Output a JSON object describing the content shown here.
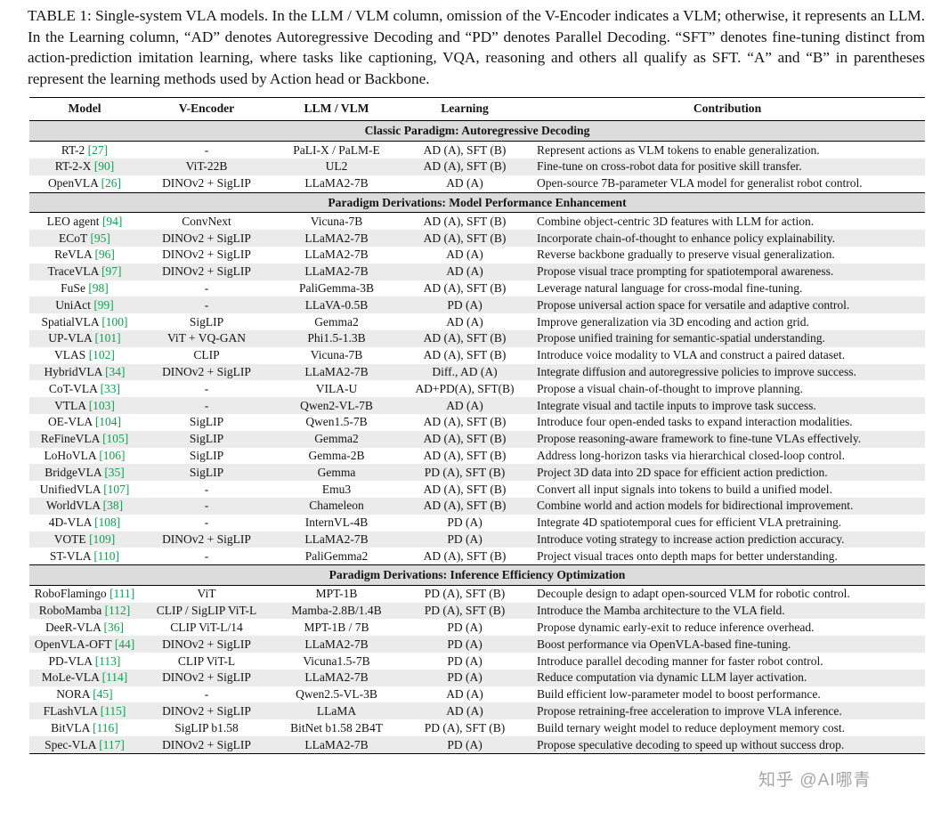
{
  "caption": "TABLE 1: Single-system VLA models. In the LLM / VLM column, omission of the V-Encoder indicates a VLM; otherwise, it represents an LLM. In the Learning column, “AD” denotes Autoregressive Decoding and “PD” denotes Parallel Decoding. “SFT” denotes fine-tuning distinct from action-prediction imitation learning, where tasks like captioning, VQA, reasoning and others all qualify as SFT. “A” and “B” in parentheses represent the learning methods used by Action head or Backbone.",
  "colors": {
    "citation": "#0ba24e",
    "section_bg": "#dcdcdc",
    "stripe": "#ebebeb"
  },
  "watermark": "知乎 @AI哪青",
  "table": {
    "columns": [
      "Model",
      "V-Encoder",
      "LLM / VLM",
      "Learning",
      "Contribution"
    ],
    "sections": [
      {
        "title": "Classic Paradigm: Autoregressive Decoding",
        "rows": [
          {
            "model": "RT-2",
            "cite": "27",
            "vencoder": "-",
            "llm": "PaLI-X / PaLM-E",
            "learning": "AD (A), SFT (B)",
            "contribution": "Represent actions as VLM tokens to enable generalization."
          },
          {
            "model": "RT-2-X",
            "cite": "90",
            "vencoder": "ViT-22B",
            "llm": "UL2",
            "learning": "AD (A), SFT (B)",
            "contribution": "Fine-tune on cross-robot data for positive skill transfer."
          },
          {
            "model": "OpenVLA",
            "cite": "26",
            "vencoder": "DINOv2 + SigLIP",
            "llm": "LLaMA2-7B",
            "learning": "AD (A)",
            "contribution": "Open-source 7B-parameter VLA model for generalist robot control."
          }
        ]
      },
      {
        "title": "Paradigm Derivations: Model Performance Enhancement",
        "rows": [
          {
            "model": "LEO agent",
            "cite": "94",
            "vencoder": "ConvNext",
            "llm": "Vicuna-7B",
            "learning": "AD (A), SFT (B)",
            "contribution": "Combine object-centric 3D features with LLM for action."
          },
          {
            "model": "ECoT",
            "cite": "95",
            "vencoder": "DINOv2 + SigLIP",
            "llm": "LLaMA2-7B",
            "learning": "AD (A), SFT (B)",
            "contribution": "Incorporate chain-of-thought to enhance policy explainability."
          },
          {
            "model": "ReVLA",
            "cite": "96",
            "vencoder": "DINOv2 + SigLIP",
            "llm": "LLaMA2-7B",
            "learning": "AD (A)",
            "contribution": "Reverse backbone gradually to preserve visual generalization."
          },
          {
            "model": "TraceVLA",
            "cite": "97",
            "vencoder": "DINOv2 + SigLIP",
            "llm": "LLaMA2-7B",
            "learning": "AD (A)",
            "contribution": "Propose visual trace prompting for spatiotemporal awareness."
          },
          {
            "model": "FuSe",
            "cite": "98",
            "vencoder": "-",
            "llm": "PaliGemma-3B",
            "learning": "AD (A), SFT (B)",
            "contribution": "Leverage natural language for cross-modal fine-tuning."
          },
          {
            "model": "UniAct",
            "cite": "99",
            "vencoder": "-",
            "llm": "LLaVA-0.5B",
            "learning": "PD (A)",
            "contribution": "Propose universal action space for versatile and adaptive control."
          },
          {
            "model": "SpatialVLA",
            "cite": "100",
            "vencoder": "SigLIP",
            "llm": "Gemma2",
            "learning": "AD (A)",
            "contribution": "Improve generalization via 3D encoding and action grid."
          },
          {
            "model": "UP-VLA",
            "cite": "101",
            "vencoder": "ViT + VQ-GAN",
            "llm": "Phi1.5-1.3B",
            "learning": "AD (A), SFT (B)",
            "contribution": "Propose unified training for semantic-spatial understanding."
          },
          {
            "model": "VLAS",
            "cite": "102",
            "vencoder": "CLIP",
            "llm": "Vicuna-7B",
            "learning": "AD (A), SFT (B)",
            "contribution": "Introduce voice modality to VLA and construct a paired dataset."
          },
          {
            "model": "HybridVLA",
            "cite": "34",
            "vencoder": "DINOv2 + SigLIP",
            "llm": "LLaMA2-7B",
            "learning": "Diff., AD (A)",
            "contribution": "Integrate diffusion and autoregressive policies to improve success."
          },
          {
            "model": "CoT-VLA",
            "cite": "33",
            "vencoder": "-",
            "llm": "VILA-U",
            "learning": "AD+PD(A), SFT(B)",
            "contribution": "Propose a visual chain-of-thought to improve planning."
          },
          {
            "model": "VTLA",
            "cite": "103",
            "vencoder": "-",
            "llm": "Qwen2-VL-7B",
            "learning": "AD (A)",
            "contribution": "Integrate visual and tactile inputs to improve task success."
          },
          {
            "model": "OE-VLA",
            "cite": "104",
            "vencoder": "SigLIP",
            "llm": "Qwen1.5-7B",
            "learning": "AD (A), SFT (B)",
            "contribution": "Introduce four open-ended tasks to expand interaction modalities."
          },
          {
            "model": "ReFineVLA",
            "cite": "105",
            "vencoder": "SigLIP",
            "llm": "Gemma2",
            "learning": "AD (A), SFT (B)",
            "contribution": "Propose reasoning-aware framework to fine-tune VLAs effectively."
          },
          {
            "model": "LoHoVLA",
            "cite": "106",
            "vencoder": "SigLIP",
            "llm": "Gemma-2B",
            "learning": "AD (A), SFT (B)",
            "contribution": "Address long-horizon tasks via hierarchical closed-loop control."
          },
          {
            "model": "BridgeVLA",
            "cite": "35",
            "vencoder": "SigLIP",
            "llm": "Gemma",
            "learning": "PD (A), SFT (B)",
            "contribution": "Project 3D data into 2D space for efficient action prediction."
          },
          {
            "model": "UnifiedVLA",
            "cite": "107",
            "vencoder": "-",
            "llm": "Emu3",
            "learning": "AD (A), SFT (B)",
            "contribution": "Convert all input signals into tokens to build a unified model."
          },
          {
            "model": "WorldVLA",
            "cite": "38",
            "vencoder": "-",
            "llm": "Chameleon",
            "learning": "AD (A), SFT (B)",
            "contribution": "Combine world and action models for bidirectional improvement."
          },
          {
            "model": "4D-VLA",
            "cite": "108",
            "vencoder": "-",
            "llm": "InternVL-4B",
            "learning": "PD (A)",
            "contribution": "Integrate 4D spatiotemporal cues for efficient VLA pretraining."
          },
          {
            "model": "VOTE",
            "cite": "109",
            "vencoder": "DINOv2 + SigLIP",
            "llm": "LLaMA2-7B",
            "learning": "PD (A)",
            "contribution": "Introduce voting strategy to increase action prediction accuracy."
          },
          {
            "model": "ST-VLA",
            "cite": "110",
            "vencoder": "-",
            "llm": "PaliGemma2",
            "learning": "AD (A), SFT (B)",
            "contribution": "Project visual traces onto depth maps for better understanding."
          }
        ]
      },
      {
        "title": "Paradigm Derivations: Inference Efficiency Optimization",
        "rows": [
          {
            "model": "RoboFlamingo",
            "cite": "111",
            "vencoder": "ViT",
            "llm": "MPT-1B",
            "learning": "PD (A), SFT (B)",
            "contribution": "Decouple design to adapt open-sourced VLM for robotic control."
          },
          {
            "model": "RoboMamba",
            "cite": "112",
            "vencoder": "CLIP / SigLIP ViT-L",
            "llm": "Mamba-2.8B/1.4B",
            "learning": "PD (A), SFT (B)",
            "contribution": "Introduce the Mamba architecture to the VLA field."
          },
          {
            "model": "DeeR-VLA",
            "cite": "36",
            "vencoder": "CLIP ViT-L/14",
            "llm": "MPT-1B / 7B",
            "learning": "PD (A)",
            "contribution": "Propose dynamic early-exit to reduce inference overhead."
          },
          {
            "model": "OpenVLA-OFT",
            "cite": "44",
            "vencoder": "DINOv2 + SigLIP",
            "llm": "LLaMA2-7B",
            "learning": "PD (A)",
            "contribution": "Boost performance via OpenVLA-based fine-tuning."
          },
          {
            "model": "PD-VLA",
            "cite": "113",
            "vencoder": "CLIP ViT-L",
            "llm": "Vicuna1.5-7B",
            "learning": "PD (A)",
            "contribution": "Introduce parallel decoding manner for faster robot control."
          },
          {
            "model": "MoLe-VLA",
            "cite": "114",
            "vencoder": "DINOv2 + SigLIP",
            "llm": "LLaMA2-7B",
            "learning": "PD (A)",
            "contribution": "Reduce computation via dynamic LLM layer activation."
          },
          {
            "model": "NORA",
            "cite": "45",
            "vencoder": "-",
            "llm": "Qwen2.5-VL-3B",
            "learning": "AD (A)",
            "contribution": "Build efficient low-parameter model to boost performance."
          },
          {
            "model": "FLashVLA",
            "cite": "115",
            "vencoder": "DINOv2 + SigLIP",
            "llm": "LLaMA",
            "learning": "AD (A)",
            "contribution": "Propose retraining-free acceleration to improve VLA inference."
          },
          {
            "model": "BitVLA",
            "cite": "116",
            "vencoder": "SigLIP b1.58",
            "llm": "BitNet b1.58 2B4T",
            "learning": "PD (A), SFT (B)",
            "contribution": "Build ternary weight model to reduce deployment memory cost."
          },
          {
            "model": "Spec-VLA",
            "cite": "117",
            "vencoder": "DINOv2 + SigLIP",
            "llm": "LLaMA2-7B",
            "learning": "PD (A)",
            "contribution": "Propose speculative decoding to speed up without success drop."
          }
        ]
      }
    ]
  }
}
